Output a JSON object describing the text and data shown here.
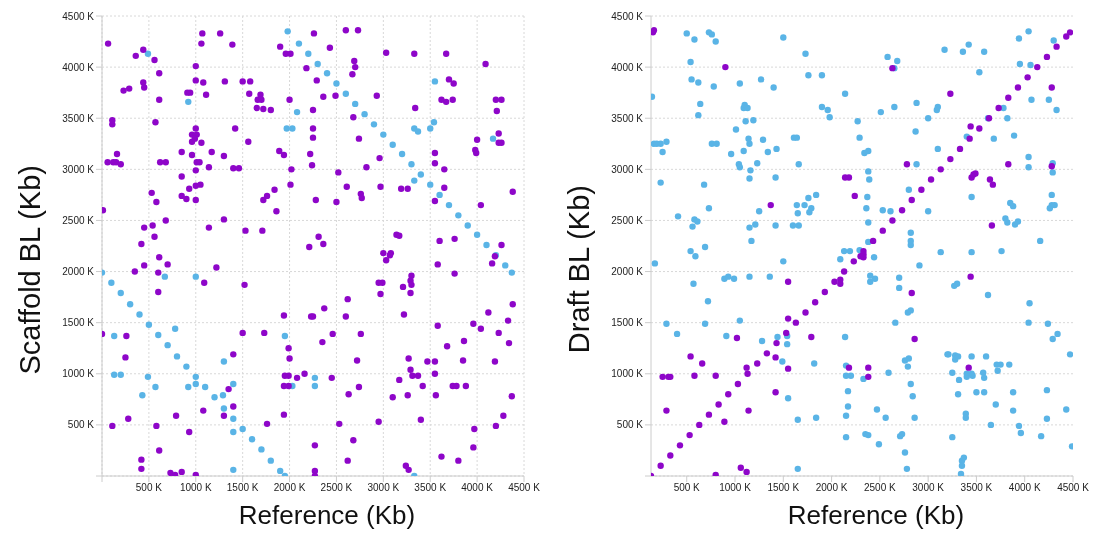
{
  "chart_data": [
    {
      "type": "scatter",
      "xlabel": "Reference (Kb)",
      "ylabel": "Scaffold BL (Kb)",
      "xlim": [
        0,
        4500
      ],
      "ylim": [
        0,
        4500
      ],
      "xticks": [
        {
          "value": 0,
          "label": null
        },
        {
          "value": 500,
          "label": "500 K"
        },
        {
          "value": 1000,
          "label": "1000 K"
        },
        {
          "value": 1500,
          "label": "1500 K"
        },
        {
          "value": 2000,
          "label": "2000 K"
        },
        {
          "value": 2500,
          "label": "2500 K"
        },
        {
          "value": 3000,
          "label": "3000 K"
        },
        {
          "value": 3500,
          "label": "3500 K"
        },
        {
          "value": 4000,
          "label": "4000 K"
        },
        {
          "value": 4500,
          "label": "4500 K"
        }
      ],
      "yticks": [
        {
          "value": 0,
          "label": null
        },
        {
          "value": 500,
          "label": "500 K"
        },
        {
          "value": 1000,
          "label": "1000 K"
        },
        {
          "value": 1500,
          "label": "1500 K"
        },
        {
          "value": 2000,
          "label": "2000 K"
        },
        {
          "value": 2500,
          "label": "2500 K"
        },
        {
          "value": 3000,
          "label": "3000 K"
        },
        {
          "value": 3500,
          "label": "3500 K"
        },
        {
          "value": 4000,
          "label": "4000 K"
        },
        {
          "value": 4500,
          "label": "4500 K"
        }
      ],
      "grid": true,
      "marker": "circle",
      "series": [
        {
          "color": "#5ab4e6",
          "x": [
            0,
            100,
            200,
            300,
            400,
            500,
            600,
            700,
            800,
            900,
            1000,
            1100,
            1200,
            1300,
            1400,
            1500,
            1600,
            1700,
            1800,
            1900,
            1950,
            1980,
            2100,
            2200,
            2300,
            2400,
            2500,
            2600,
            2700,
            2800,
            2900,
            3000,
            3100,
            3200,
            3300,
            3400,
            3500,
            3600,
            3700,
            3800,
            3900,
            4000,
            4100,
            4200,
            4300,
            4370,
            490,
            920,
            1970,
            2030,
            2080,
            3330,
            3370,
            3330,
            3500,
            3540,
            3550,
            4170,
            670,
            1000,
            130,
            780,
            130,
            200,
            490,
            570,
            430,
            920,
            1000,
            1300,
            1290,
            1400,
            1400,
            1400,
            1950,
            2030,
            2270,
            2270,
            3330
          ],
          "values": [
            1990,
            1890,
            1790,
            1680,
            1580,
            1480,
            1380,
            1280,
            1170,
            1070,
            970,
            870,
            770,
            660,
            560,
            460,
            360,
            260,
            150,
            50,
            0,
            4350,
            4230,
            4130,
            4030,
            3940,
            3840,
            3740,
            3640,
            3540,
            3440,
            3340,
            3240,
            3150,
            3050,
            2950,
            2850,
            2750,
            2650,
            2550,
            2450,
            2360,
            2260,
            2160,
            2060,
            1990,
            4130,
            3660,
            3400,
            3400,
            3560,
            3400,
            3370,
            2890,
            3400,
            3460,
            3860,
            3300,
            1950,
            1950,
            1370,
            1440,
            990,
            990,
            970,
            870,
            790,
            870,
            900,
            1120,
            790,
            900,
            430,
            60,
            1370,
            880,
            960,
            880,
            0
          ]
        },
        {
          "color": "#8e06c9",
          "x": [
            65,
            360,
            440,
            560,
            610,
            440,
            450,
            230,
            290,
            610,
            570,
            110,
            110,
            60,
            120,
            150,
            160,
            200,
            620,
            680,
            10,
            580,
            530,
            680,
            540,
            450,
            420,
            560,
            450,
            350,
            610,
            600,
            700,
            600,
            0,
            260,
            250,
            280,
            110,
            420,
            420,
            580,
            610,
            730,
            780,
            850,
            790,
            930,
            1000,
            1080,
            1300,
            1400,
            1350,
            1400,
            1500,
            1730,
            1760,
            1940,
            1940,
            1990,
            2000,
            1950,
            1990,
            2080,
            2160,
            1990,
            1940,
            2230,
            2250,
            2270,
            2270,
            2270,
            2350,
            2370,
            2450,
            2460,
            2530,
            2620,
            2630,
            2620,
            2600,
            2680,
            2720,
            2740,
            2760,
            2950,
            3100,
            3170,
            3240,
            3270,
            3260,
            3270,
            3290,
            3310,
            3370,
            3400,
            3420,
            3470,
            3550,
            3550,
            3560,
            3620,
            3680,
            3740,
            3780,
            3800,
            3850,
            3860,
            3880,
            3960,
            3970,
            3960,
            4040,
            4120,
            4190,
            4200,
            4230,
            4280,
            4340,
            4330,
            4380,
            4370,
            1000,
            1070,
            1060,
            1260,
            1390,
            1000,
            1080,
            1310,
            1500,
            1580,
            1570,
            1660,
            1650,
            1690,
            1700,
            1720,
            1800,
            940,
            910,
            1110,
            960,
            1000,
            1010,
            960,
            990,
            1060,
            1420,
            1560,
            850,
            960,
            1010,
            1040,
            1170,
            1300,
            1400,
            1460,
            1140,
            1000,
            1000,
            850,
            930,
            1050,
            1000,
            850,
            900,
            1300,
            1140,
            1530,
            1710,
            1220,
            1090,
            1520,
            1720,
            1760,
            1840,
            1860,
            1890,
            1940,
            1900,
            1960,
            2010,
            2000,
            2020,
            2010,
            2180,
            2290,
            2260,
            2250,
            2250,
            2250,
            2220,
            2240,
            2280,
            2210,
            2310,
            2360,
            2360,
            2430,
            2490,
            2520,
            2500,
            2610,
            2600,
            2730,
            2690,
            2700,
            2670,
            2680,
            2740,
            2820,
            2760,
            2770,
            2930,
            2960,
            2970,
            3030,
            3000,
            3030,
            3080,
            3070,
            3140,
            3170,
            3190,
            3260,
            3300,
            3290,
            3300,
            3210,
            3290,
            3220,
            2950,
            2990,
            2970,
            3330,
            3340,
            3550,
            3550,
            3650,
            3650,
            3550,
            3600,
            3760,
            3580,
            3760,
            3580,
            3670,
            3700,
            3750,
            3620,
            3670,
            3740,
            4000,
            3980,
            3990,
            4040,
            4090,
            4200,
            4260,
            4210,
            4230,
            4230,
            4260,
            4190,
            4160,
            4260,
            4380
          ],
          "values": [
            4230,
            4110,
            4170,
            4070,
            3940,
            3850,
            3800,
            3770,
            3790,
            3680,
            3460,
            3440,
            3480,
            3070,
            3070,
            3070,
            3150,
            3050,
            3070,
            3070,
            2600,
            2680,
            2770,
            2500,
            2450,
            2430,
            2270,
            2340,
            2060,
            2000,
            2140,
            1990,
            2070,
            1800,
            1390,
            1370,
            1160,
            560,
            490,
            160,
            70,
            490,
            250,
            30,
            10,
            40,
            590,
            430,
            10,
            640,
            590,
            680,
            850,
            1190,
            1400,
            1400,
            510,
            600,
            1570,
            1250,
            1150,
            980,
            980,
            960,
            1000,
            880,
            880,
            1560,
            1560,
            300,
            50,
            0,
            1310,
            1640,
            960,
            1390,
            510,
            150,
            800,
            1730,
            1560,
            350,
            1130,
            870,
            1390,
            530,
            770,
            940,
            100,
            60,
            790,
            1150,
            1040,
            980,
            980,
            550,
            880,
            1120,
            1000,
            1120,
            790,
            190,
            1270,
            880,
            880,
            150,
            1130,
            1320,
            880,
            1490,
            460,
            280,
            1440,
            1600,
            1120,
            490,
            1400,
            590,
            1300,
            1520,
            1680,
            780,
            4010,
            4330,
            4230,
            4330,
            4220,
            3870,
            3850,
            3860,
            3860,
            3860,
            3740,
            3680,
            3600,
            3730,
            3680,
            3590,
            3580,
            3750,
            3750,
            3730,
            3340,
            3400,
            3340,
            3270,
            3300,
            3260,
            3400,
            3270,
            3170,
            3140,
            3070,
            3070,
            3170,
            3130,
            3010,
            3010,
            3020,
            2990,
            2840,
            2930,
            2810,
            2850,
            2700,
            2740,
            2710,
            2510,
            2430,
            2400,
            2400,
            2040,
            1890,
            1870,
            2700,
            2740,
            2800,
            2590,
            3180,
            3140,
            4200,
            4130,
            4130,
            3680,
            3000,
            2850,
            3990,
            3870,
            4330,
            3580,
            3400,
            3310,
            3150,
            3040,
            2700,
            2240,
            2340,
            2270,
            3710,
            4190,
            3720,
            2970,
            2680,
            2830,
            4360,
            4360,
            4060,
            4000,
            3930,
            3510,
            3300,
            3020,
            2760,
            2720,
            3720,
            3110,
            2830,
            4140,
            2180,
            2110,
            2180,
            2160,
            2360,
            2350,
            2810,
            2810,
            1960,
            1910,
            1870,
            1850,
            1790,
            1580,
            1890,
            1890,
            1780,
            4130,
            3600,
            3160,
            3060,
            3000,
            2820,
            2690,
            2300,
            2320,
            2070,
            1980,
            1470,
            4130,
            3880,
            3840,
            3680,
            3660,
            3680,
            3290,
            3190,
            3160,
            2650,
            4030,
            3680,
            3680,
            3570,
            3350,
            3260,
            3260,
            2150,
            2080,
            2260,
            2780
          ]
        }
      ]
    },
    {
      "type": "scatter",
      "xlabel": "Reference (Kb)",
      "ylabel": "Draft BL (Kb)",
      "xlim": [
        130,
        4500
      ],
      "ylim": [
        0,
        4500
      ],
      "xticks": [
        {
          "value": 500,
          "label": "500 K"
        },
        {
          "value": 1000,
          "label": "1000 K"
        },
        {
          "value": 1500,
          "label": "1500 K"
        },
        {
          "value": 2000,
          "label": "2000 K"
        },
        {
          "value": 2500,
          "label": "2500 K"
        },
        {
          "value": 3000,
          "label": "3000 K"
        },
        {
          "value": 3500,
          "label": "3500 K"
        },
        {
          "value": 4000,
          "label": "4000 K"
        },
        {
          "value": 4500,
          "label": "4500 K"
        }
      ],
      "yticks": [
        {
          "value": 0,
          "label": null
        },
        {
          "value": 500,
          "label": "500 K"
        },
        {
          "value": 1000,
          "label": "1000 K"
        },
        {
          "value": 1500,
          "label": "1500 K"
        },
        {
          "value": 2000,
          "label": "2000 K"
        },
        {
          "value": 2500,
          "label": "2500 K"
        },
        {
          "value": 3000,
          "label": "3000 K"
        },
        {
          "value": 3500,
          "label": "3500 K"
        },
        {
          "value": 4000,
          "label": "4000 K"
        },
        {
          "value": 4500,
          "label": "4500 K"
        }
      ],
      "grid": "y",
      "marker": "circle",
      "series": [
        {
          "color": "#5ab4e6",
          "x": [
            140,
            500,
            540,
            580,
            550,
            620,
            730,
            760,
            800,
            780,
            640,
            620,
            1050,
            1090,
            1100,
            1130,
            1270,
            1400,
            1500,
            1730,
            1760,
            1900,
            1900,
            1960,
            1980,
            2140,
            2270,
            2290,
            2340,
            2380,
            2580,
            2680,
            2650,
            2510,
            2650,
            2880,
            2870,
            3000,
            3090,
            3100,
            3170,
            3360,
            3420,
            3580,
            3530,
            3620,
            3680,
            3940,
            3950,
            4060,
            3820,
            3890,
            4040,
            4250,
            4330,
            4300,
            160,
            190,
            230,
            290,
            250,
            230,
            680,
            730,
            760,
            810,
            960,
            1010,
            1040,
            1050,
            1090,
            1110,
            1140,
            1150,
            1160,
            1150,
            1190,
            1230,
            1290,
            1340,
            1430,
            1420,
            1610,
            1640,
            1660,
            1640,
            1650,
            1760,
            1770,
            1790,
            1840,
            1720,
            1250,
            1210,
            1150,
            1170,
            1420,
            1600,
            1660,
            1500,
            1360,
            1150,
            580,
            610,
            560,
            540,
            590,
            690,
            410,
            170,
            570,
            290,
            690,
            720,
            400,
            890,
            930,
            990,
            910,
            1050,
            1280,
            1440,
            1540,
            1540,
            1490,
            1550,
            1650,
            1650,
            1820,
            1840,
            2140,
            2150,
            2150,
            2200,
            2170,
            2170,
            2150,
            2150,
            2330,
            2350,
            2380,
            2470,
            2490,
            2590,
            2560,
            2710,
            2730,
            2760,
            2780,
            2860,
            2760,
            2790,
            2800,
            2820,
            2700,
            2700,
            2790,
            2820,
            2660,
            2450,
            2400,
            2400,
            2440,
            2290,
            2190,
            2130,
            2090,
            2360,
            2380,
            2380,
            2380,
            2390,
            2370,
            2530,
            2610,
            2800,
            2820,
            2820,
            2820,
            2880,
            2910,
            3000,
            3130,
            3100,
            3210,
            3280,
            3280,
            3250,
            3320,
            3310,
            3400,
            3400,
            3450,
            3460,
            3450,
            3450,
            3450,
            3400,
            3300,
            3270,
            3310,
            3200,
            3250,
            3350,
            3370,
            3350,
            3340,
            3390,
            3390,
            3500,
            3570,
            3580,
            3580,
            3600,
            3620,
            3650,
            3700,
            3710,
            3750,
            3840,
            3880,
            3880,
            3940,
            3960,
            4040,
            4050,
            4040,
            4040,
            4070,
            4160,
            4170,
            4230,
            4230,
            4240,
            4290,
            4340,
            4280,
            4280,
            4310,
            4260,
            4290,
            4290,
            4430,
            4490,
            4470,
            3900,
            3930,
            3760,
            3820,
            3850,
            3880,
            3780,
            3800,
            3720,
            2840
          ],
          "values": [
            3710,
            4330,
            4050,
            4270,
            3880,
            3850,
            4340,
            4320,
            4250,
            3810,
            3640,
            3530,
            3840,
            3600,
            3630,
            3600,
            3880,
            3800,
            4290,
            4130,
            3920,
            3920,
            3610,
            3580,
            3510,
            3740,
            3470,
            3310,
            3160,
            3180,
            4100,
            4060,
            3990,
            3560,
            3610,
            3650,
            3370,
            3500,
            3580,
            3610,
            4170,
            4150,
            4220,
            4150,
            3950,
            3500,
            3300,
            4280,
            4030,
            4020,
            3500,
            3330,
            4350,
            3680,
            3580,
            4260,
            3250,
            3250,
            3250,
            3270,
            3170,
            2870,
            2850,
            2620,
            3250,
            3250,
            3150,
            3390,
            3050,
            3020,
            3180,
            3470,
            3300,
            3250,
            2990,
            2910,
            3480,
            3060,
            3290,
            3170,
            3200,
            2920,
            3310,
            3310,
            3050,
            2650,
            2570,
            2720,
            2580,
            2620,
            2750,
            2650,
            2590,
            2460,
            2430,
            2300,
            2450,
            2450,
            2450,
            2100,
            1950,
            1950,
            2510,
            2490,
            2440,
            2200,
            2150,
            2240,
            2540,
            2080,
            1880,
            1490,
            1490,
            1710,
            1390,
            1930,
            1950,
            1930,
            1370,
            1520,
            1320,
            1360,
            1290,
            1370,
            1120,
            760,
            550,
            70,
            1100,
            570,
            1360,
            1080,
            980,
            980,
            830,
            680,
            590,
            380,
            950,
            410,
            400,
            650,
            310,
            1010,
            570,
            390,
            410,
            230,
            70,
            570,
            1130,
            1070,
            1150,
            900,
            1940,
            1840,
            1600,
            1620,
            1500,
            1930,
            1960,
            1900,
            2140,
            2210,
            2200,
            2200,
            2120,
            2620,
            2290,
            2480,
            2980,
            2900,
            2730,
            2600,
            2590,
            2800,
            2380,
            2260,
            2300,
            3050,
            2060,
            2590,
            2190,
            3200,
            1190,
            1180,
            1140,
            1010,
            940,
            800,
            1000,
            970,
            1000,
            980,
            1170,
            2190,
            2730,
            3320,
            1880,
            1860,
            1170,
            1190,
            380,
            150,
            180,
            100,
            20,
            610,
            570,
            820,
            1010,
            960,
            820,
            1170,
            1770,
            500,
            700,
            1090,
            1090,
            1090,
            640,
            820,
            490,
            420,
            1500,
            1690,
            3020,
            3120,
            3680,
            2300,
            390,
            560,
            840,
            1490,
            1340,
            1390,
            2750,
            2650,
            2650,
            2620,
            3060,
            2970,
            650,
            290,
            1190,
            2460,
            2490,
            2200,
            2480,
            2670,
            2640,
            3600,
            2520,
            1030,
            780
          ]
        },
        {
          "color": "#8e06c9",
          "x": [
            130,
            230,
            330,
            430,
            530,
            630,
            730,
            830,
            930,
            1030,
            1130,
            1230,
            1330,
            1430,
            1530,
            1630,
            1730,
            1830,
            1930,
            2030,
            2130,
            2230,
            2330,
            2430,
            2530,
            2630,
            2730,
            2830,
            2930,
            3030,
            3130,
            3230,
            3330,
            3430,
            3530,
            3630,
            3730,
            3830,
            3930,
            4030,
            4130,
            4230,
            4330,
            4430,
            4470,
            150,
            160,
            900,
            1370,
            1550,
            1550,
            1550,
            1420,
            1420,
            1020,
            1120,
            1140,
            1120,
            1060,
            800,
            890,
            800,
            540,
            660,
            580,
            290,
            250,
            310,
            330,
            1790,
            2140,
            2180,
            2240,
            2180,
            2380,
            2380,
            2630,
            2780,
            2830,
            2860,
            3230,
            3450,
            3470,
            3490,
            3440,
            3440,
            3420,
            3640,
            3660,
            3670,
            3830,
            4280,
            4280,
            2090,
            2090,
            2330,
            2330,
            2300
          ],
          "values": [
            0,
            100,
            200,
            300,
            400,
            500,
            600,
            700,
            800,
            900,
            1000,
            1100,
            1200,
            1300,
            1400,
            1500,
            1600,
            1700,
            1800,
            1900,
            2000,
            2100,
            2200,
            2300,
            2400,
            2500,
            2600,
            2700,
            2800,
            2900,
            3000,
            3100,
            3200,
            3300,
            3400,
            3500,
            3600,
            3700,
            3800,
            3900,
            4000,
            4100,
            4200,
            4300,
            4340,
            4340,
            4360,
            4000,
            2650,
            1900,
            1540,
            1050,
            1160,
            820,
            1350,
            1060,
            640,
            40,
            80,
            10,
            530,
            980,
            1170,
            1100,
            980,
            640,
            970,
            970,
            970,
            1360,
            2920,
            2920,
            2740,
            1060,
            1060,
            970,
            3990,
            3050,
            1790,
            1340,
            3740,
            2920,
            2950,
            2960,
            3420,
            1950,
            1060,
            2900,
            2450,
            2850,
            3050,
            3800,
            3030,
            1920,
            1880,
            2170,
            2140,
            2150
          ]
        }
      ]
    }
  ]
}
